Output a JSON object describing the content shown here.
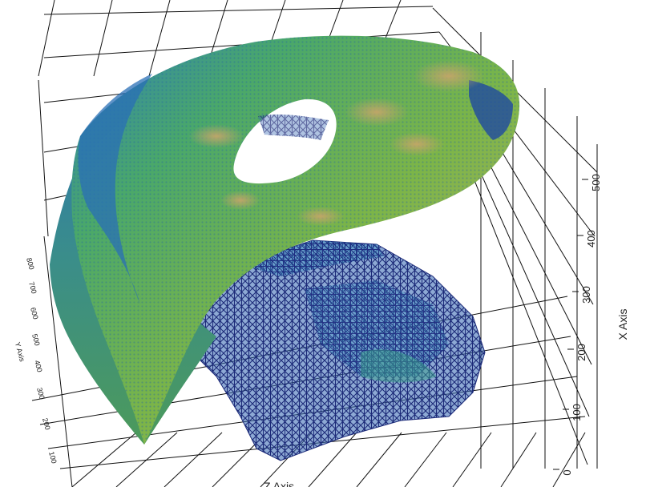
{
  "chart_data": {
    "type": "surface3d",
    "title": "",
    "x_axis": {
      "label": "X Axis",
      "ticks": [
        0,
        100,
        200,
        300,
        400,
        500
      ]
    },
    "y_axis": {
      "label": "Y Axis",
      "ticks": [
        100,
        200,
        300,
        400,
        500,
        600,
        700,
        800
      ]
    },
    "z_axis": {
      "label": "Z Axis"
    },
    "grid": true,
    "colormap": [
      "#1c2a78",
      "#1f63b5",
      "#2aa39a",
      "#5fb243",
      "#8fb54a",
      "#b8a660",
      "#8a6a3c"
    ],
    "surface": {
      "shape": "curved sheet",
      "has_hole": true,
      "lower_part": "sparse mesh"
    }
  }
}
